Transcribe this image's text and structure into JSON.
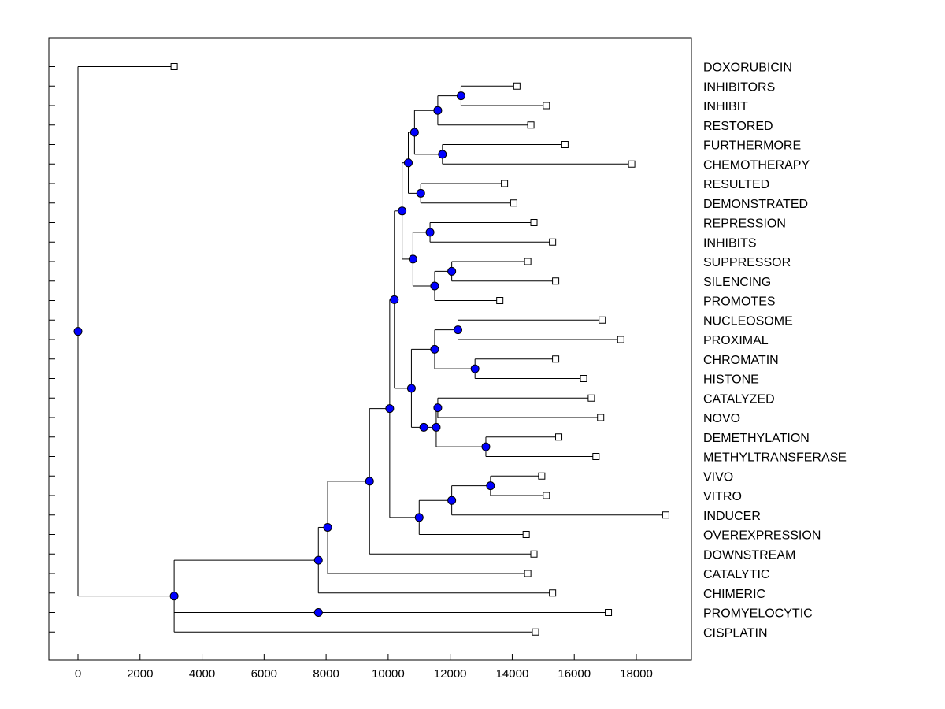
{
  "chart_data": {
    "type": "dendrogram",
    "title": "",
    "xlabel": "",
    "ylabel": "",
    "xlim": [
      -1000,
      20000
    ],
    "x_ticks": [
      0,
      2000,
      4000,
      6000,
      8000,
      10000,
      12000,
      14000,
      16000,
      18000
    ],
    "x_tick_labels": [
      "0",
      "2000",
      "4000",
      "6000",
      "8000",
      "10000",
      "12000",
      "14000",
      "16000",
      "18000"
    ],
    "node_color": "#0000ff",
    "leaves": [
      {
        "label": "DOXORUBICIN",
        "x": 3100
      },
      {
        "label": "INHIBITORS",
        "x": 14150
      },
      {
        "label": "INHIBIT",
        "x": 15100
      },
      {
        "label": "RESTORED",
        "x": 14600
      },
      {
        "label": "FURTHERMORE",
        "x": 15700
      },
      {
        "label": "CHEMOTHERAPY",
        "x": 17850
      },
      {
        "label": "RESULTED",
        "x": 13750
      },
      {
        "label": "DEMONSTRATED",
        "x": 14050
      },
      {
        "label": "REPRESSION",
        "x": 14700
      },
      {
        "label": "INHIBITS",
        "x": 15300
      },
      {
        "label": "SUPPRESSOR",
        "x": 14500
      },
      {
        "label": "SILENCING",
        "x": 15400
      },
      {
        "label": "PROMOTES",
        "x": 13600
      },
      {
        "label": "NUCLEOSOME",
        "x": 16900
      },
      {
        "label": "PROXIMAL",
        "x": 17500
      },
      {
        "label": "CHROMATIN",
        "x": 15400
      },
      {
        "label": "HISTONE",
        "x": 16300
      },
      {
        "label": "CATALYZED",
        "x": 16550
      },
      {
        "label": "NOVO",
        "x": 16850
      },
      {
        "label": "DEMETHYLATION",
        "x": 15500
      },
      {
        "label": "METHYLTRANSFERASE",
        "x": 16700
      },
      {
        "label": "VIVO",
        "x": 14950
      },
      {
        "label": "VITRO",
        "x": 15100
      },
      {
        "label": "INDUCER",
        "x": 18950
      },
      {
        "label": "OVEREXPRESSION",
        "x": 14450
      },
      {
        "label": "DOWNSTREAM",
        "x": 14700
      },
      {
        "label": "CATALYTIC",
        "x": 14500
      },
      {
        "label": "CHIMERIC",
        "x": 15300
      },
      {
        "label": "PROMYELOCYTIC",
        "x": 17100
      },
      {
        "label": "CISPLATIN",
        "x": 14750
      }
    ],
    "tree": {
      "x": 0,
      "children": [
        {
          "leaf": 0
        },
        {
          "x": 3100,
          "children": [
            {
              "x": 7750,
              "children": [
                {
                  "x": 8050,
                  "children": [
                    {
                      "x": 9400,
                      "children": [
                        {
                          "x": 10050,
                          "children": [
                            {
                              "x": 10200,
                              "children": [
                                {
                                  "x": 10450,
                                  "children": [
                                    {
                                      "x": 10650,
                                      "children": [
                                        {
                                          "x": 10850,
                                          "children": [
                                            {
                                              "x": 11600,
                                              "children": [
                                                {
                                                  "x": 12350,
                                                  "children": [
                                                    {
                                                      "leaf": 1
                                                    },
                                                    {
                                                      "leaf": 2
                                                    }
                                                  ]
                                                },
                                                {
                                                  "leaf": 3
                                                }
                                              ]
                                            },
                                            {
                                              "x": 11750,
                                              "children": [
                                                {
                                                  "leaf": 4
                                                },
                                                {
                                                  "leaf": 5
                                                }
                                              ]
                                            }
                                          ]
                                        },
                                        {
                                          "x": 11050,
                                          "children": [
                                            {
                                              "leaf": 6
                                            },
                                            {
                                              "leaf": 7
                                            }
                                          ]
                                        }
                                      ]
                                    },
                                    {
                                      "x": 10800,
                                      "children": [
                                        {
                                          "x": 11350,
                                          "children": [
                                            {
                                              "leaf": 8
                                            },
                                            {
                                              "leaf": 9
                                            }
                                          ]
                                        },
                                        {
                                          "x": 11500,
                                          "children": [
                                            {
                                              "x": 12050,
                                              "children": [
                                                {
                                                  "leaf": 10
                                                },
                                                {
                                                  "leaf": 11
                                                }
                                              ]
                                            },
                                            {
                                              "leaf": 12
                                            }
                                          ]
                                        }
                                      ]
                                    }
                                  ]
                                },
                                {
                                  "x": 10750,
                                  "children": [
                                    {
                                      "x": 11500,
                                      "children": [
                                        {
                                          "x": 12250,
                                          "children": [
                                            {
                                              "leaf": 13
                                            },
                                            {
                                              "leaf": 14
                                            }
                                          ]
                                        },
                                        {
                                          "x": 12800,
                                          "children": [
                                            {
                                              "leaf": 15
                                            },
                                            {
                                              "leaf": 16
                                            }
                                          ]
                                        }
                                      ]
                                    },
                                    {
                                      "x": 11150,
                                      "children": [
                                        {
                                          "x": 11550,
                                          "children": [
                                            {
                                              "x": 11600,
                                              "children": [
                                                {
                                                  "leaf": 17
                                                },
                                                {
                                                  "leaf": 18
                                                }
                                              ]
                                            },
                                            {
                                              "x": 13150,
                                              "children": [
                                                {
                                                  "leaf": 19
                                                },
                                                {
                                                  "leaf": 20
                                                }
                                              ]
                                            }
                                          ]
                                        }
                                      ]
                                    }
                                  ]
                                }
                              ]
                            },
                            {
                              "x": 11000,
                              "children": [
                                {
                                  "x": 12050,
                                  "children": [
                                    {
                                      "x": 13300,
                                      "children": [
                                        {
                                          "leaf": 21
                                        },
                                        {
                                          "leaf": 22
                                        }
                                      ]
                                    },
                                    {
                                      "leaf": 23
                                    }
                                  ]
                                },
                                {
                                  "leaf": 24
                                }
                              ]
                            }
                          ]
                        },
                        {
                          "leaf": 25
                        }
                      ]
                    },
                    {
                      "leaf": 26
                    }
                  ]
                },
                {
                  "leaf": 27
                }
              ]
            },
            {
              "x": 7750,
              "children": [
                {
                  "leaf": 28
                }
              ]
            },
            {
              "leaf": 29
            }
          ]
        }
      ]
    }
  }
}
